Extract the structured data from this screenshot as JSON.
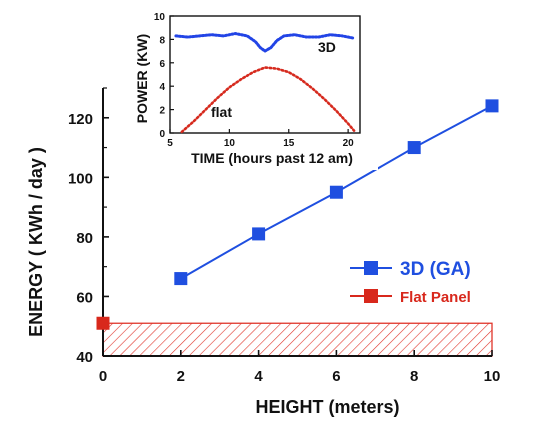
{
  "colors": {
    "blue": "#1f4fe0",
    "red": "#d8281c",
    "dotted_blue": "#2244e6",
    "dotted_red": "#d62a1e",
    "hatch": "#e0342a",
    "axis": "#111111"
  },
  "chart_data": [
    {
      "type": "line",
      "title": "",
      "xlabel": "HEIGHT (meters)",
      "ylabel": "ENERGY ( KWh / day )",
      "xlim": [
        0,
        10
      ],
      "ylim": [
        40,
        130
      ],
      "x_ticks": [
        "0",
        "2",
        "4",
        "6",
        "8",
        "10"
      ],
      "y_ticks": [
        "40",
        "60",
        "80",
        "100",
        "120"
      ],
      "legend_position": "right",
      "series": [
        {
          "name": "3D (GA)",
          "marker": "square",
          "color": "#1f4fe0",
          "points": [
            [
              2,
              66
            ],
            [
              4,
              81
            ],
            [
              6,
              95
            ],
            [
              8,
              110
            ],
            [
              10,
              124
            ]
          ]
        },
        {
          "name": "Flat Panel",
          "marker": "square",
          "color": "#d8281c",
          "points": [
            [
              0,
              51
            ]
          ],
          "fill_band": [
            40,
            51
          ]
        }
      ]
    },
    {
      "type": "line",
      "title": "",
      "xlabel": "TIME (hours past 12 am)",
      "ylabel": "POWER (KW)",
      "xlim": [
        5,
        21
      ],
      "ylim": [
        0,
        10
      ],
      "x_ticks": [
        "5",
        "10",
        "15",
        "20"
      ],
      "y_ticks": [
        "0",
        "2",
        "4",
        "6",
        "8",
        "10"
      ],
      "annotations": [
        "3D",
        "flat"
      ],
      "series": [
        {
          "label": "3D",
          "style": "dotted",
          "color": "#2244e6",
          "points": [
            [
              5.5,
              8.3
            ],
            [
              6.5,
              8.2
            ],
            [
              7.5,
              8.3
            ],
            [
              8.5,
              8.4
            ],
            [
              9.5,
              8.3
            ],
            [
              10.5,
              8.5
            ],
            [
              11.5,
              8.3
            ],
            [
              12.2,
              7.8
            ],
            [
              12.6,
              7.3
            ],
            [
              13,
              7.0
            ],
            [
              13.5,
              7.3
            ],
            [
              14,
              7.9
            ],
            [
              14.6,
              8.3
            ],
            [
              15.5,
              8.4
            ],
            [
              16.5,
              8.2
            ],
            [
              17.5,
              8.2
            ],
            [
              18.5,
              8.4
            ],
            [
              19.5,
              8.3
            ],
            [
              20.5,
              8.1
            ]
          ]
        },
        {
          "label": "flat",
          "style": "dotted",
          "color": "#d62a1e",
          "points": [
            [
              6,
              0.1
            ],
            [
              7,
              1.0
            ],
            [
              8,
              2.0
            ],
            [
              9,
              3.0
            ],
            [
              10,
              3.9
            ],
            [
              11,
              4.6
            ],
            [
              12,
              5.2
            ],
            [
              13,
              5.6
            ],
            [
              14,
              5.5
            ],
            [
              15,
              5.2
            ],
            [
              16,
              4.6
            ],
            [
              17,
              3.8
            ],
            [
              18,
              2.9
            ],
            [
              19,
              1.9
            ],
            [
              20,
              0.8
            ],
            [
              20.5,
              0.2
            ]
          ]
        }
      ]
    }
  ]
}
